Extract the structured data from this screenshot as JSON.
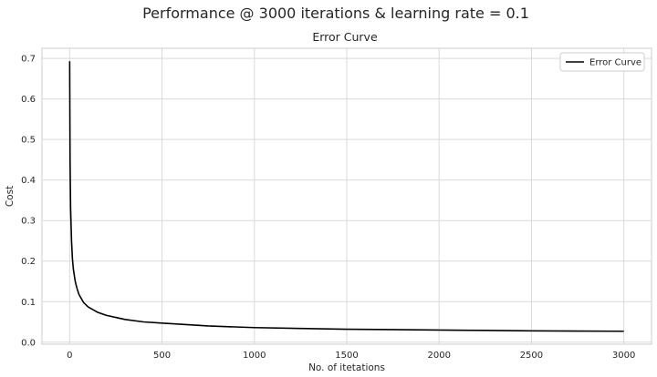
{
  "figure": {
    "suptitle": "Performance @ 3000 iterations & learning rate = 0.1"
  },
  "chart_data": {
    "type": "line",
    "title": "Error Curve",
    "xlabel": "No. of itetations",
    "ylabel": "Cost",
    "xlim": [
      -150,
      3150
    ],
    "ylim": [
      -0.005,
      0.725
    ],
    "xticks": [
      0,
      500,
      1000,
      1500,
      2000,
      2500,
      3000
    ],
    "xtick_labels": [
      "0",
      "500",
      "1000",
      "1500",
      "2000",
      "2500",
      "3000"
    ],
    "yticks": [
      0.0,
      0.1,
      0.2,
      0.3,
      0.4,
      0.5,
      0.6,
      0.7
    ],
    "ytick_labels": [
      "0.0",
      "0.1",
      "0.2",
      "0.3",
      "0.4",
      "0.5",
      "0.6",
      "0.7"
    ],
    "grid": true,
    "legend_position": "top-right",
    "series": [
      {
        "name": "Error Curve",
        "color": "#000000",
        "x": [
          0,
          2,
          5,
          10,
          15,
          20,
          30,
          40,
          50,
          75,
          100,
          150,
          200,
          300,
          400,
          500,
          750,
          1000,
          1250,
          1500,
          1750,
          2000,
          2250,
          2500,
          2750,
          3000
        ],
        "y": [
          0.693,
          0.45,
          0.33,
          0.25,
          0.205,
          0.18,
          0.15,
          0.132,
          0.118,
          0.098,
          0.087,
          0.074,
          0.066,
          0.056,
          0.05,
          0.047,
          0.04,
          0.036,
          0.034,
          0.032,
          0.031,
          0.03,
          0.029,
          0.028,
          0.0275,
          0.027
        ]
      }
    ]
  }
}
